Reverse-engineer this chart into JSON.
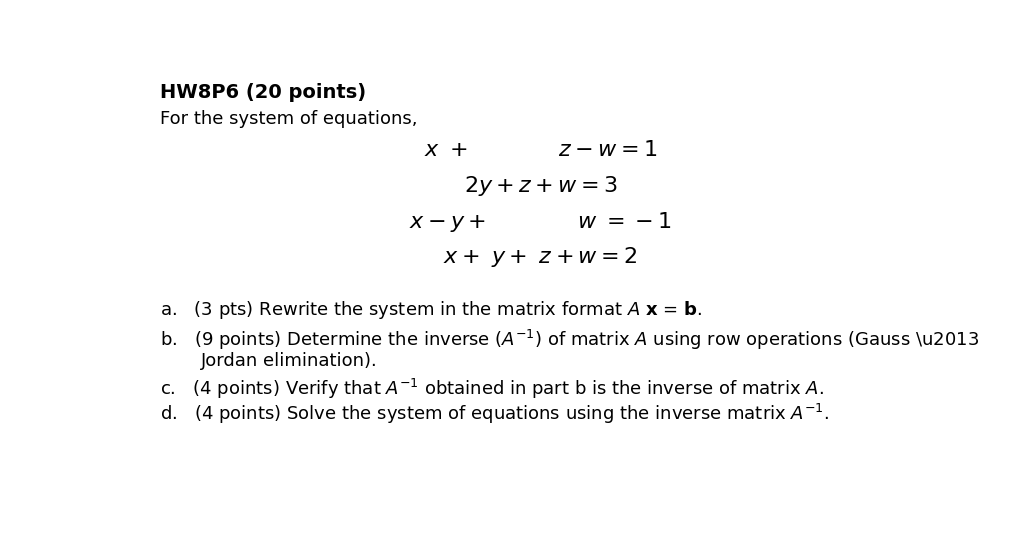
{
  "title": "HW8P6 (20 points)",
  "subtitle": "For the system of equations,",
  "background": "#ffffff",
  "text_color": "#000000",
  "title_fontsize": 14,
  "body_fontsize": 13,
  "eq_fontsize": 16
}
